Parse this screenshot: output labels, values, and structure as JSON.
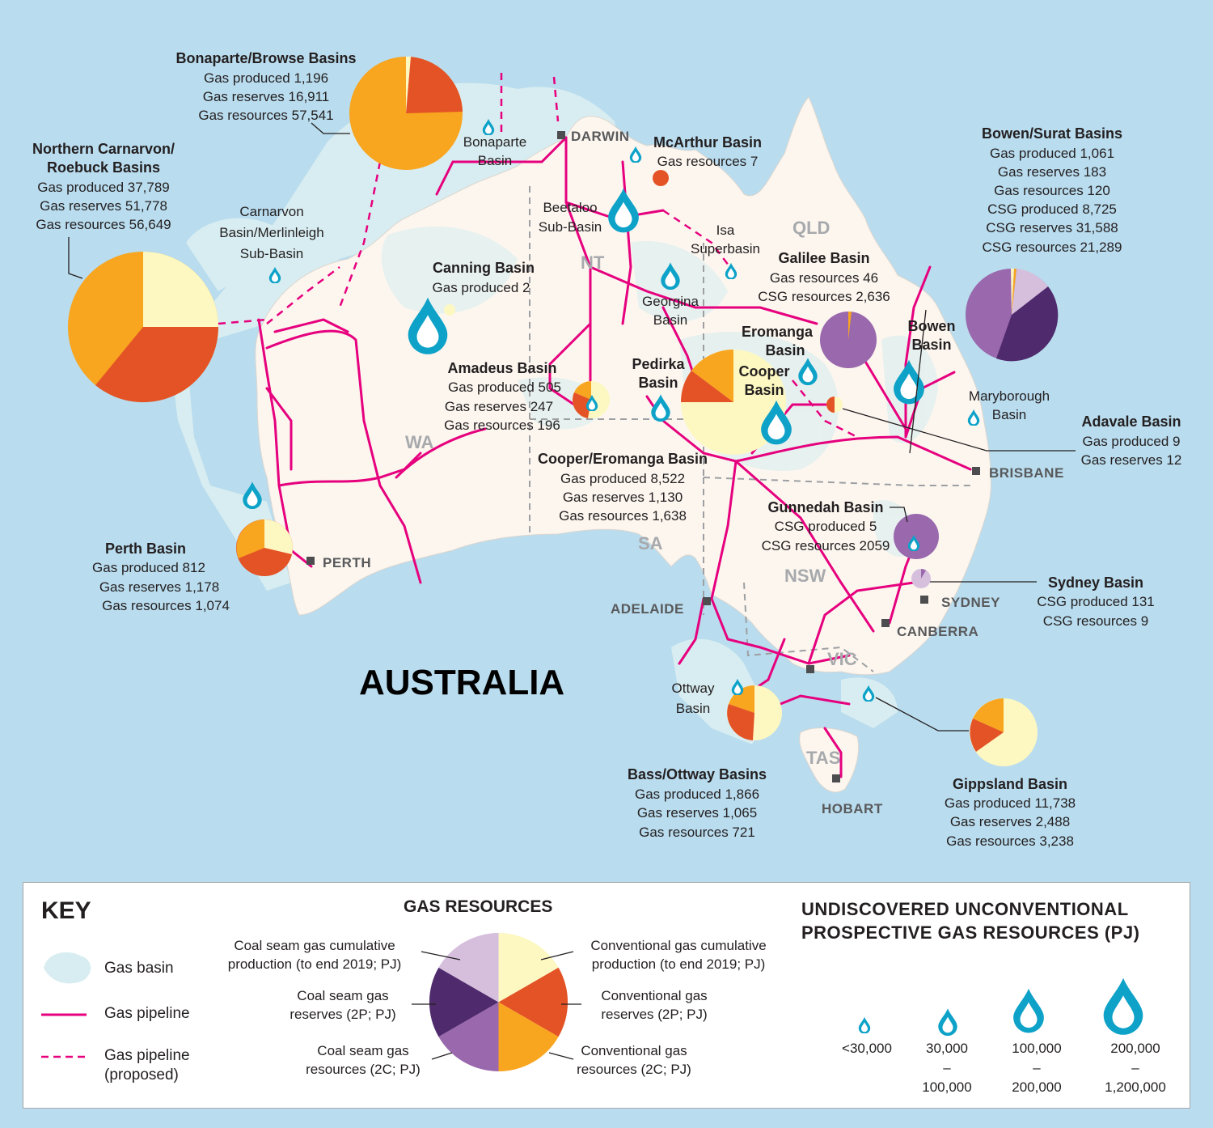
{
  "title": "AUSTRALIA",
  "colors": {
    "ocean": "#b9dcee",
    "land": "#fcf6ef",
    "basin": "#d8edf1",
    "pipeline": "#e6007e",
    "drop": "#0ea2c8",
    "conv_cum": "#fdf8c1",
    "conv_res": "#e35326",
    "conv_resources": "#f8a51f",
    "csg_cum": "#d6bfdd",
    "csg_res": "#4f2a6d",
    "csg_resources": "#9a68ad"
  },
  "states": [
    "WA",
    "NT",
    "QLD",
    "SA",
    "NSW",
    "VIC",
    "TAS"
  ],
  "cities": [
    "DARWIN",
    "PERTH",
    "ADELAIDE",
    "BRISBANE",
    "SYDNEY",
    "CANBERRA",
    "HOBART"
  ],
  "basins": {
    "bonaparte_browse": {
      "name": "Bonaparte/Browse Basins",
      "lines": [
        "Gas produced 1,196",
        "Gas reserves 16,911",
        "Gas resources 57,541"
      ]
    },
    "northern_carnarvon": {
      "name1": "Northern Carnarvon/",
      "name2": "Roebuck Basins",
      "lines": [
        "Gas produced 37,789",
        "Gas reserves 51,778",
        "Gas resources 56,649"
      ]
    },
    "carnarvon_merlinleigh": {
      "lines": [
        "Carnarvon",
        "Basin/Merlinleigh",
        "Sub-Basin"
      ]
    },
    "bonaparte": {
      "lines": [
        "Bonaparte",
        "Basin"
      ]
    },
    "mcarthur": {
      "name": "McArthur Basin",
      "lines": [
        "Gas resources 7"
      ]
    },
    "beetaloo": {
      "lines": [
        "Beetaloo",
        "Sub-Basin"
      ]
    },
    "isa": {
      "lines": [
        "Isa",
        "Superbasin"
      ]
    },
    "canning": {
      "name": "Canning Basin",
      "lines": [
        "Gas produced 2"
      ]
    },
    "georgina": {
      "lines": [
        "Georgina",
        "Basin"
      ]
    },
    "galilee": {
      "name": "Galilee Basin",
      "lines": [
        "Gas resources 46",
        "CSG resources 2,636"
      ]
    },
    "eromanga": {
      "lines": [
        "Eromanga",
        "Basin"
      ]
    },
    "bowen": {
      "lines": [
        "Bowen",
        "Basin"
      ]
    },
    "bowen_surat": {
      "name": "Bowen/Surat Basins",
      "lines": [
        "Gas produced 1,061",
        "Gas reserves 183",
        "Gas resources 120",
        "CSG produced 8,725",
        "CSG reserves 31,588",
        "CSG resources 21,289"
      ]
    },
    "amadeus": {
      "name": "Amadeus Basin",
      "lines": [
        "Gas produced 505",
        "Gas reserves 247",
        "Gas resources 196"
      ]
    },
    "pedirka": {
      "lines": [
        "Pedirka",
        "Basin"
      ]
    },
    "cooper": {
      "lines": [
        "Cooper",
        "Basin"
      ]
    },
    "maryborough": {
      "lines": [
        "Maryborough",
        "Basin"
      ]
    },
    "adavale": {
      "name": "Adavale Basin",
      "lines": [
        "Gas produced 9",
        "Gas reserves 12"
      ]
    },
    "cooper_eromanga": {
      "name": "Cooper/Eromanga Basin",
      "lines": [
        "Gas produced 8,522",
        "Gas reserves 1,130",
        "Gas resources 1,638"
      ]
    },
    "gunnedah": {
      "name": "Gunnedah Basin",
      "lines": [
        "CSG produced 5",
        "CSG resources 2059"
      ]
    },
    "perth": {
      "name": "Perth Basin",
      "lines": [
        "Gas produced 812",
        "Gas reserves 1,178",
        "Gas resources 1,074"
      ]
    },
    "sydney": {
      "name": "Sydney Basin",
      "lines": [
        "CSG produced 131",
        "CSG resources 9"
      ]
    },
    "ottway": {
      "lines": [
        "Ottway",
        "Basin"
      ]
    },
    "bass_ottway": {
      "name": "Bass/Ottway Basins",
      "lines": [
        "Gas produced 1,866",
        "Gas reserves 1,065",
        "Gas resources 721"
      ]
    },
    "gippsland": {
      "name": "Gippsland Basin",
      "lines": [
        "Gas produced 11,738",
        "Gas reserves 2,488",
        "Gas resources 3,238"
      ]
    }
  },
  "key": {
    "title": "KEY",
    "items": [
      "Gas basin",
      "Gas pipeline",
      "Gas pipeline",
      "(proposed)"
    ],
    "gas_resources": {
      "title": "GAS RESOURCES",
      "csg_cum": [
        "Coal seam gas cumulative",
        "production (to end 2019; PJ)"
      ],
      "csg_res": [
        "Coal seam gas",
        "reserves (2P; PJ)"
      ],
      "csg_resources": [
        "Coal seam gas",
        "resources (2C; PJ)"
      ],
      "conv_cum": [
        "Conventional gas cumulative",
        "production (to end 2019; PJ)"
      ],
      "conv_res": [
        "Conventional gas",
        "reserves (2P; PJ)"
      ],
      "conv_resources": [
        "Conventional gas",
        "resources (2C; PJ)"
      ]
    },
    "undiscovered": {
      "title": [
        "UNDISCOVERED UNCONVENTIONAL",
        "PROSPECTIVE GAS RESOURCES (PJ)"
      ],
      "classes": [
        {
          "lines": [
            "<30,000"
          ]
        },
        {
          "lines": [
            "30,000",
            "–",
            "100,000"
          ]
        },
        {
          "lines": [
            "100,000",
            "–",
            "200,000"
          ]
        },
        {
          "lines": [
            "200,000",
            "–",
            "1,200,000"
          ]
        }
      ]
    }
  }
}
